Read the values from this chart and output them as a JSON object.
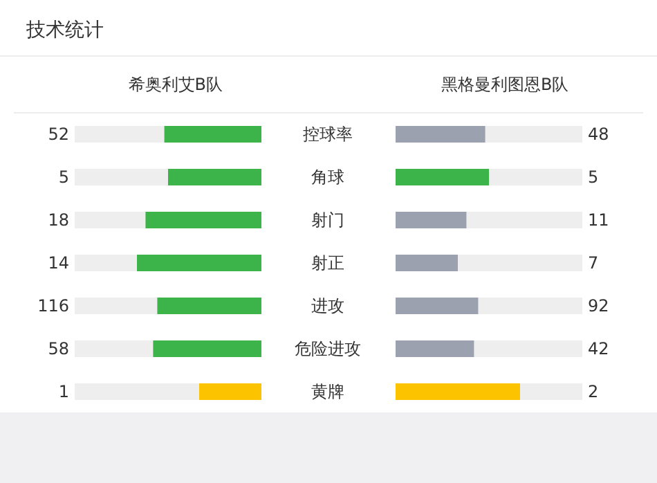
{
  "chart_data": {
    "type": "other",
    "title": "技术统计",
    "categories": [
      "控球率",
      "角球",
      "射门",
      "射正",
      "进攻",
      "危险进攻",
      "黄牌"
    ],
    "data_labels": true,
    "series": [
      {
        "name": "希奥利艾B队",
        "values": [
          52,
          5,
          18,
          14,
          116,
          58,
          1
        ],
        "colors": [
          "#3cb449",
          "#3cb449",
          "#3cb449",
          "#3cb449",
          "#3cb449",
          "#3cb449",
          "#fcc400"
        ]
      },
      {
        "name": "黑格曼利图恩B队",
        "values": [
          48,
          5,
          11,
          7,
          92,
          42,
          2
        ],
        "colors": [
          "#9ba1af",
          "#3cb449",
          "#9ba1af",
          "#9ba1af",
          "#9ba1af",
          "#9ba1af",
          "#fcc400"
        ]
      }
    ]
  }
}
